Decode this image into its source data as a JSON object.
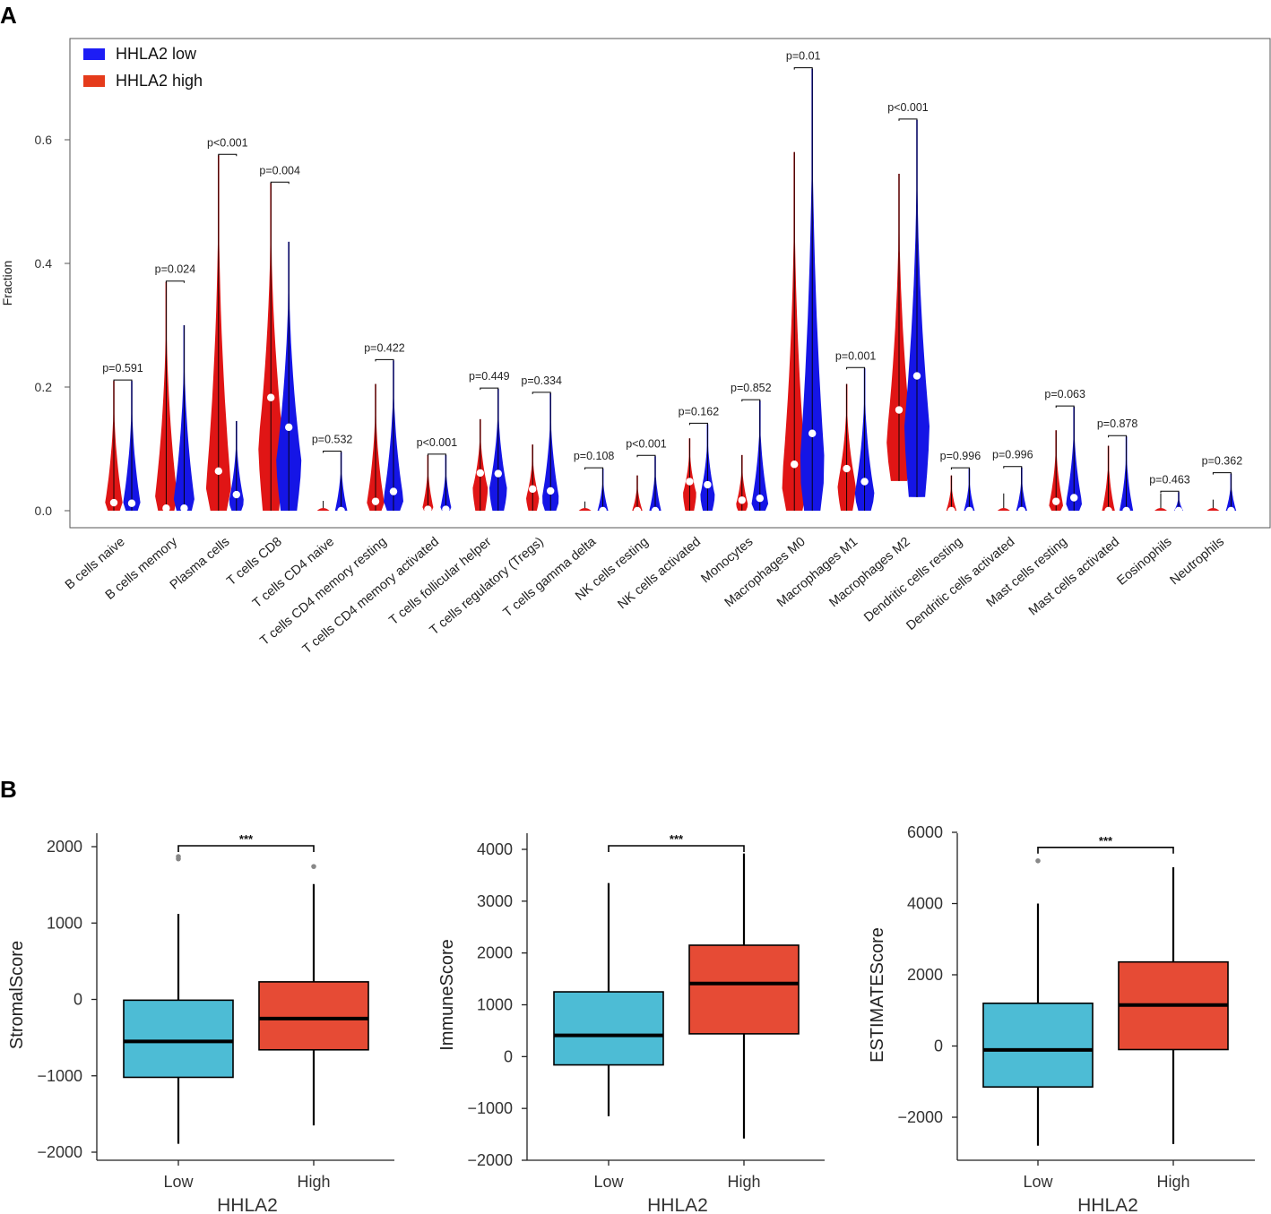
{
  "panel_labels": {
    "a": "A",
    "b": "B"
  },
  "colors": {
    "low": "#1515e6",
    "high": "#e01515",
    "legend_low": "#1d1df5",
    "legend_high": "#e53b1b",
    "box_low": "#4dbcd5",
    "box_high": "#e64b35",
    "white": "#ffffff"
  },
  "chart_data": [
    {
      "type": "violin",
      "title": "",
      "xlabel": "",
      "ylabel": "Fraction",
      "ylim": [
        0,
        0.74
      ],
      "yticks": [
        0.0,
        0.2,
        0.4,
        0.6
      ],
      "ytick_labels": [
        "0.0",
        "0.2",
        "0.4",
        "0.6"
      ],
      "legend": {
        "position": "top-left",
        "entries": [
          {
            "name": "HHLA2 low",
            "color": "#1d1df5"
          },
          {
            "name": "HHLA2 high",
            "color": "#e53b1b"
          }
        ]
      },
      "categories": [
        "B cells naive",
        "B cells memory",
        "Plasma cells",
        "T cells CD8",
        "T cells CD4 naive",
        "T cells CD4 memory resting",
        "T cells CD4 memory activated",
        "T cells follicular helper",
        "T cells regulatory (Tregs)",
        "T cells gamma delta",
        "NK cells resting",
        "NK cells activated",
        "Monocytes",
        "Macrophages M0",
        "Macrophages M1",
        "Macrophages M2",
        "Dendritic cells resting",
        "Dendritic cells activated",
        "Mast cells resting",
        "Mast cells activated",
        "Eosinophils",
        "Neutrophils"
      ],
      "p_values": [
        "p=0.591",
        "p=0.024",
        "p<0.001",
        "p=0.004",
        "p=0.532",
        "p=0.422",
        "p<0.001",
        "p=0.449",
        "p=0.334",
        "p=0.108",
        "p<0.001",
        "p=0.162",
        "p=0.852",
        "p=0.01",
        "p=0.001",
        "p<0.001",
        "p=0.996",
        "p=0.996",
        "p=0.063",
        "p=0.878",
        "p=0.463",
        "p=0.362"
      ],
      "series": [
        {
          "name": "HHLA2 high",
          "color": "#e01515",
          "max": [
            0.21,
            0.37,
            0.575,
            0.53,
            0.013,
            0.205,
            0.09,
            0.148,
            0.107,
            0.012,
            0.057,
            0.117,
            0.09,
            0.58,
            0.205,
            0.545,
            0.057,
            0.025,
            0.13,
            0.105,
            0.025,
            0.015
          ],
          "median": [
            0.013,
            0.004,
            0.064,
            0.183,
            0.0,
            0.015,
            0.002,
            0.061,
            0.035,
            0.0,
            0.0,
            0.047,
            0.017,
            0.075,
            0.068,
            0.163,
            0.0,
            0.0,
            0.015,
            0.0,
            0.0,
            0.0
          ],
          "min": [
            0.0,
            0.0,
            0.0,
            0.0,
            0.0,
            0.0,
            0.0,
            0.0,
            0.0,
            0.0,
            0.0,
            0.0,
            0.0,
            0.0,
            0.0,
            0.048,
            0.0,
            0.0,
            0.0,
            0.0,
            0.0,
            0.0
          ]
        },
        {
          "name": "HHLA2 low",
          "color": "#1515e6",
          "max": [
            0.21,
            0.3,
            0.145,
            0.435,
            0.095,
            0.243,
            0.09,
            0.197,
            0.19,
            0.068,
            0.088,
            0.14,
            0.178,
            0.715,
            0.23,
            0.632,
            0.068,
            0.07,
            0.168,
            0.12,
            0.03,
            0.06
          ],
          "median": [
            0.012,
            0.004,
            0.026,
            0.135,
            0.0,
            0.031,
            0.002,
            0.06,
            0.032,
            0.0,
            0.0,
            0.042,
            0.02,
            0.125,
            0.047,
            0.218,
            0.0,
            0.0,
            0.021,
            0.0,
            0.0,
            0.0
          ],
          "min": [
            0.0,
            0.0,
            0.0,
            0.0,
            0.0,
            0.0,
            0.0,
            0.0,
            0.0,
            0.0,
            0.0,
            0.0,
            0.0,
            0.0,
            0.0,
            0.022,
            0.0,
            0.0,
            0.0,
            0.0,
            0.0,
            0.0
          ]
        }
      ]
    },
    {
      "type": "box",
      "title": "",
      "xlabel": "HHLA2",
      "ylabel": "StromalScore",
      "ylim": [
        -2100,
        2150
      ],
      "yticks": [
        -2000,
        -1000,
        0,
        1000,
        2000
      ],
      "ytick_labels": [
        "−2000",
        "−1000",
        "0",
        "1000",
        "2000"
      ],
      "categories": [
        "Low",
        "High"
      ],
      "significance": "***",
      "boxes": [
        {
          "name": "Low",
          "color": "#4dbcd5",
          "whisker_low": -1890,
          "q1": -1020,
          "median": -550,
          "q3": -10,
          "whisker_high": 1120,
          "outliers": [
            1840,
            1870
          ]
        },
        {
          "name": "High",
          "color": "#e64b35",
          "whisker_low": -1650,
          "q1": -660,
          "median": -250,
          "q3": 230,
          "whisker_high": 1510,
          "outliers": [
            1740
          ]
        }
      ]
    },
    {
      "type": "box",
      "title": "",
      "xlabel": "HHLA2",
      "ylabel": "ImmuneScore",
      "ylim": [
        -2000,
        4350
      ],
      "yticks": [
        -2000,
        -1000,
        0,
        1000,
        2000,
        3000,
        4000
      ],
      "ytick_labels": [
        "−2000",
        "−1000",
        "0",
        "1000",
        "2000",
        "3000",
        "4000"
      ],
      "categories": [
        "Low",
        "High"
      ],
      "significance": "***",
      "boxes": [
        {
          "name": "Low",
          "color": "#4dbcd5",
          "whisker_low": -1150,
          "q1": -160,
          "median": 410,
          "q3": 1250,
          "whisker_high": 3350,
          "outliers": []
        },
        {
          "name": "High",
          "color": "#e64b35",
          "whisker_low": -1580,
          "q1": 440,
          "median": 1410,
          "q3": 2150,
          "whisker_high": 3920,
          "outliers": []
        }
      ]
    },
    {
      "type": "box",
      "title": "",
      "xlabel": "HHLA2",
      "ylabel": "ESTIMATEScore",
      "ylim": [
        -3200,
        6000
      ],
      "yticks": [
        -2000,
        0,
        2000,
        4000,
        6000
      ],
      "ytick_labels": [
        "−2000",
        "0",
        "2000",
        "4000",
        "6000"
      ],
      "categories": [
        "Low",
        "High"
      ],
      "significance": "***",
      "boxes": [
        {
          "name": "Low",
          "color": "#4dbcd5",
          "whisker_low": -2800,
          "q1": -1150,
          "median": -110,
          "q3": 1200,
          "whisker_high": 4000,
          "outliers": [
            5200
          ]
        },
        {
          "name": "High",
          "color": "#e64b35",
          "whisker_low": -2750,
          "q1": -100,
          "median": 1150,
          "q3": 2360,
          "whisker_high": 5020,
          "outliers": []
        }
      ]
    }
  ]
}
